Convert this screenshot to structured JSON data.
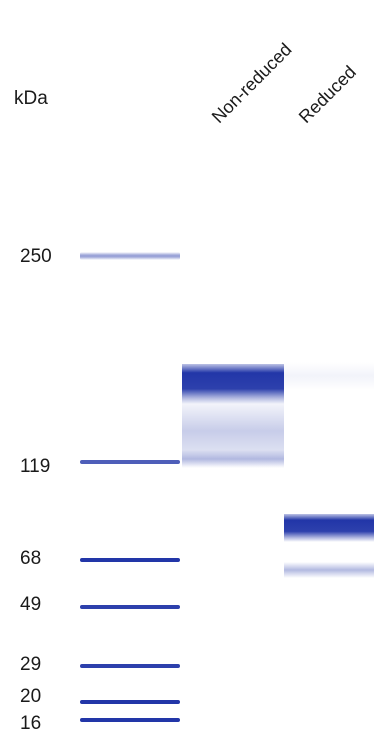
{
  "unit_label": "kDa",
  "lane_headers": {
    "non_reduced": "Non-reduced",
    "reduced": "Reduced"
  },
  "ladder": {
    "color": "#2236a8",
    "markers": [
      {
        "label": "250",
        "intensity": 0.45
      },
      {
        "label": "119",
        "intensity": 0.8
      },
      {
        "label": "68",
        "intensity": 1.0
      },
      {
        "label": "49",
        "intensity": 0.95
      },
      {
        "label": "29",
        "intensity": 0.95
      },
      {
        "label": "20",
        "intensity": 1.0
      },
      {
        "label": "16",
        "intensity": 1.0
      }
    ]
  },
  "sample_lanes": [
    {
      "name": "Non-reduced",
      "bands": [
        {
          "kind": "main",
          "intensity": 1.0
        },
        {
          "kind": "smear",
          "intensity": 0.25
        },
        {
          "kind": "minor",
          "intensity": 0.3
        }
      ]
    },
    {
      "name": "Reduced",
      "bands": [
        {
          "kind": "faint",
          "intensity": 0.06
        },
        {
          "kind": "main",
          "intensity": 1.0
        },
        {
          "kind": "minor",
          "intensity": 0.35
        }
      ]
    }
  ]
}
